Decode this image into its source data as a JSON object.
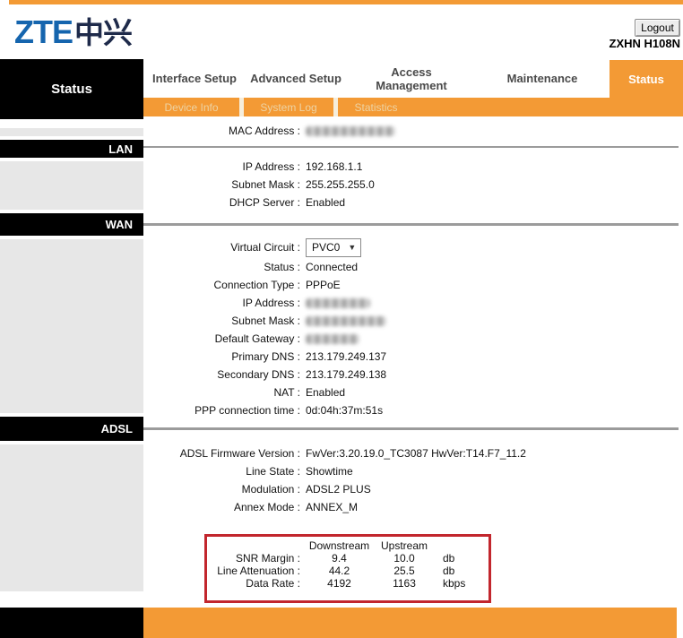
{
  "header": {
    "brand_latin": "ZTE",
    "brand_cjk": "中兴",
    "logout_label": "Logout",
    "model": "ZXHN H108N"
  },
  "nav": {
    "tabs": [
      {
        "label": "Interface Setup",
        "active": false
      },
      {
        "label": "Advanced Setup",
        "active": false
      },
      {
        "label": "Access Management",
        "active": false
      },
      {
        "label": "Maintenance",
        "active": false
      },
      {
        "label": "Status",
        "active": true
      }
    ],
    "subtabs": [
      {
        "label": "Device Info",
        "active": true
      },
      {
        "label": "System Log",
        "active": false
      },
      {
        "label": "Statistics",
        "active": false
      }
    ]
  },
  "sidebar": {
    "active_item": "Status",
    "sections": [
      {
        "label": "LAN"
      },
      {
        "label": "WAN"
      },
      {
        "label": "ADSL"
      }
    ]
  },
  "device_info": {
    "rows": [
      {
        "label": "MAC Address :",
        "value": "",
        "masked": true
      }
    ]
  },
  "lan": {
    "rows": [
      {
        "label": "IP Address :",
        "value": "192.168.1.1"
      },
      {
        "label": "Subnet Mask :",
        "value": "255.255.255.0"
      },
      {
        "label": "DHCP Server :",
        "value": "Enabled"
      }
    ]
  },
  "wan": {
    "virtual_circuit": {
      "label": "Virtual Circuit :",
      "selected": "PVC0",
      "control": "select"
    },
    "rows": [
      {
        "label": "Status :",
        "value": "Connected"
      },
      {
        "label": "Connection Type :",
        "value": "PPPoE"
      },
      {
        "label": "IP Address :",
        "value": "",
        "masked": true
      },
      {
        "label": "Subnet Mask :",
        "value": "",
        "masked": true
      },
      {
        "label": "Default Gateway :",
        "value": "",
        "masked": true
      },
      {
        "label": "Primary DNS :",
        "value": "213.179.249.137"
      },
      {
        "label": "Secondary DNS :",
        "value": "213.179.249.138"
      },
      {
        "label": "NAT :",
        "value": "Enabled"
      },
      {
        "label": "PPP connection time :",
        "value": "0d:04h:37m:51s"
      }
    ]
  },
  "adsl": {
    "rows": [
      {
        "label": "ADSL Firmware Version :",
        "value": "FwVer:3.20.19.0_TC3087 HwVer:T14.F7_11.2"
      },
      {
        "label": "Line State :",
        "value": "Showtime"
      },
      {
        "label": "Modulation :",
        "value": "ADSL2 PLUS"
      },
      {
        "label": "Annex Mode :",
        "value": "ANNEX_M"
      }
    ]
  },
  "stats_table": {
    "col_downstream": "Downstream",
    "col_upstream": "Upstream",
    "rows": [
      {
        "label": "SNR Margin :",
        "downstream": "9.4",
        "upstream": "10.0",
        "unit": "db"
      },
      {
        "label": "Line Attenuation :",
        "downstream": "44.2",
        "upstream": "25.5",
        "unit": "db"
      },
      {
        "label": "Data Rate :",
        "downstream": "4192",
        "upstream": "1163",
        "unit": "kbps"
      }
    ]
  },
  "colors": {
    "accent_orange": "#F39A35",
    "subnav_text": "#EDD3A4",
    "brand_blue": "#1565AE",
    "brand_navy": "#1E2A4A",
    "sidebar_gray": "#E7E7E7",
    "section_bar_black": "#000000",
    "divider_gray": "#9B9B9B",
    "highlight_box_red": "#C2262D"
  }
}
